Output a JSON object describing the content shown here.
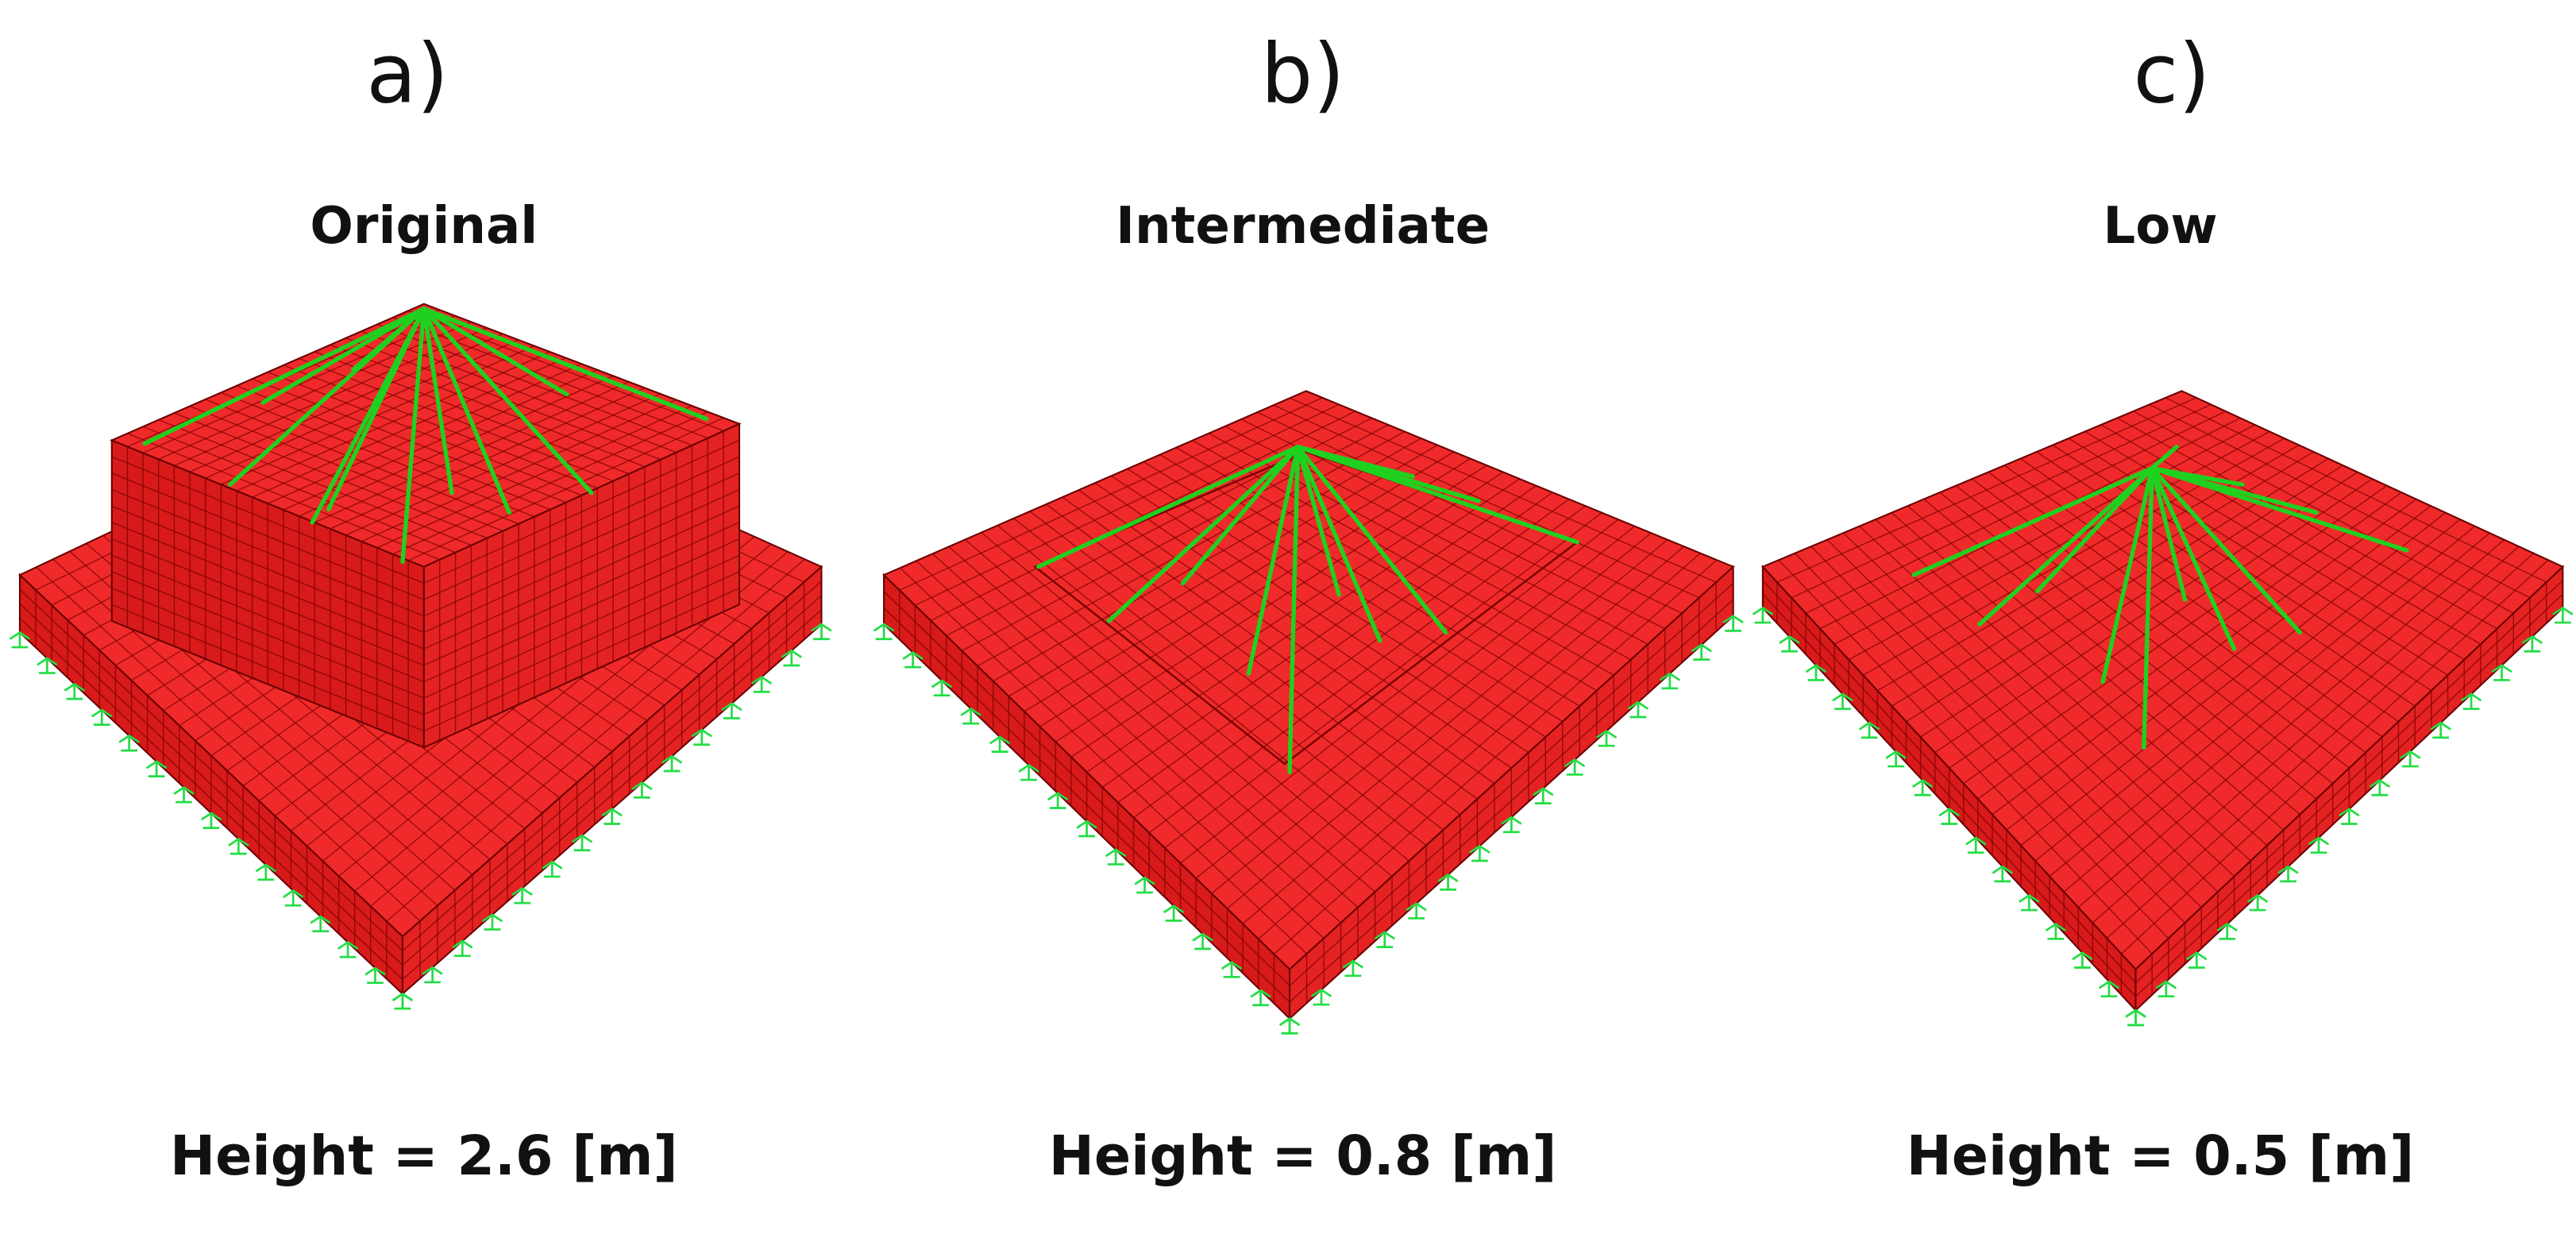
{
  "panels": [
    {
      "label": "a)",
      "title": "Original",
      "caption": "Height = 2.6 [m]"
    },
    {
      "label": "b)",
      "title": "Intermediate",
      "caption": "Height = 0.8 [m]"
    },
    {
      "label": "c)",
      "title": "Low",
      "caption": "Height = 0.5 [m]"
    }
  ]
}
